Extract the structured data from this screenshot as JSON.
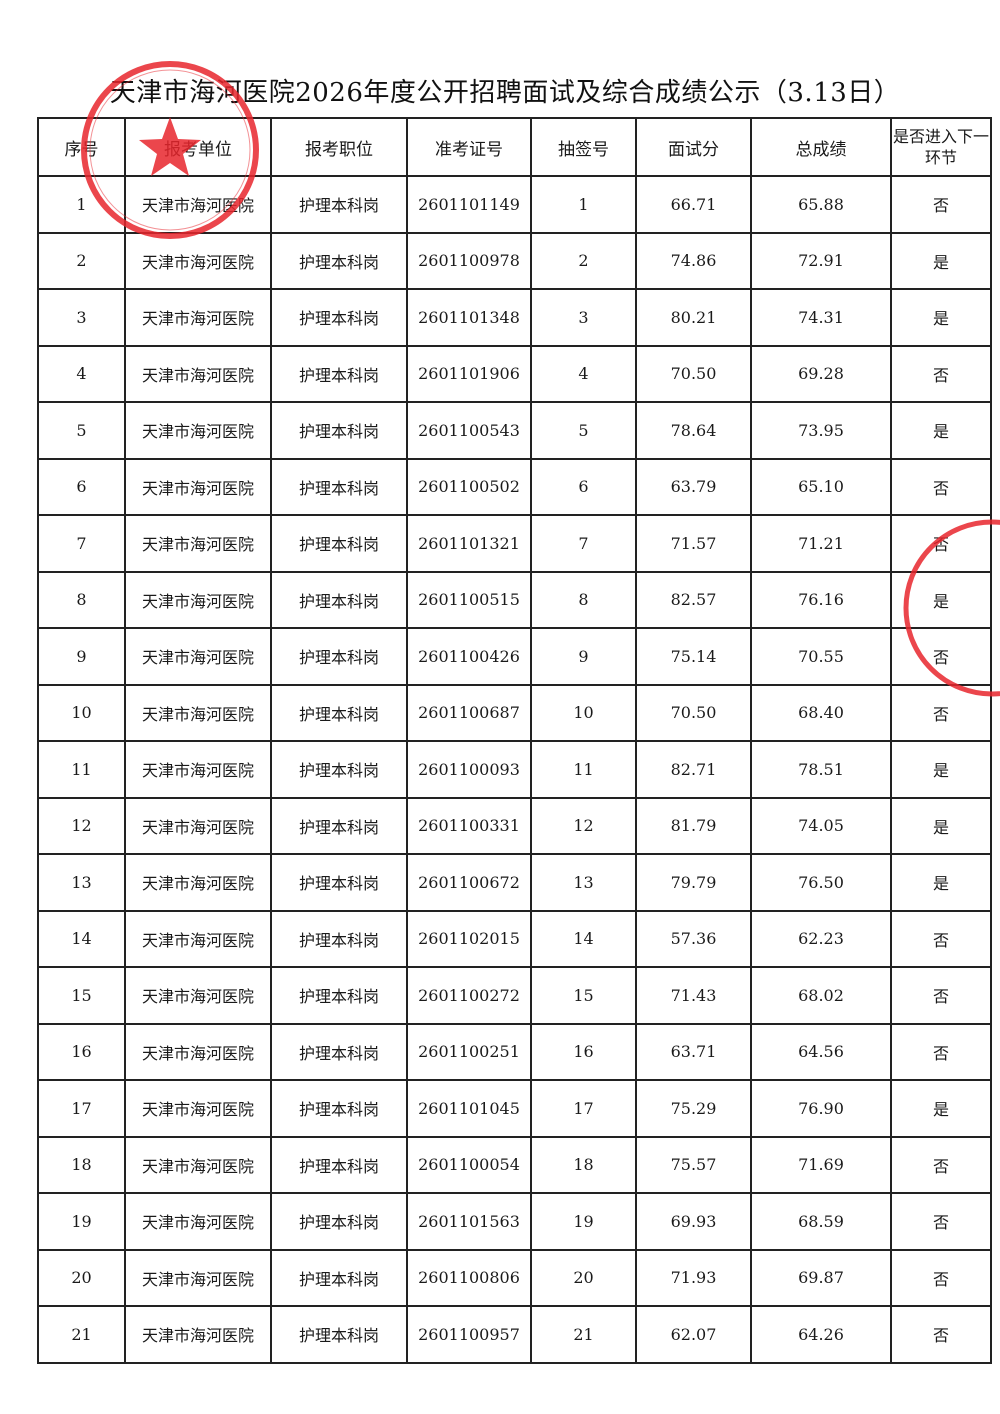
{
  "title": "天津市海河医院2026年度公开招聘面试及综合成绩公示（3.13日）",
  "colors": {
    "stamp": "#e8262d",
    "ink": "#1a1a1a"
  },
  "table": {
    "headers": [
      "序号",
      "报考单位",
      "报考职位",
      "准考证号",
      "抽签号",
      "面试分",
      "总成绩",
      "是否进入下一环节"
    ],
    "rows": [
      [
        "1",
        "天津市海河医院",
        "护理本科岗",
        "2601101149",
        "1",
        "66.71",
        "65.88",
        "否"
      ],
      [
        "2",
        "天津市海河医院",
        "护理本科岗",
        "2601100978",
        "2",
        "74.86",
        "72.91",
        "是"
      ],
      [
        "3",
        "天津市海河医院",
        "护理本科岗",
        "2601101348",
        "3",
        "80.21",
        "74.31",
        "是"
      ],
      [
        "4",
        "天津市海河医院",
        "护理本科岗",
        "2601101906",
        "4",
        "70.50",
        "69.28",
        "否"
      ],
      [
        "5",
        "天津市海河医院",
        "护理本科岗",
        "2601100543",
        "5",
        "78.64",
        "73.95",
        "是"
      ],
      [
        "6",
        "天津市海河医院",
        "护理本科岗",
        "2601100502",
        "6",
        "63.79",
        "65.10",
        "否"
      ],
      [
        "7",
        "天津市海河医院",
        "护理本科岗",
        "2601101321",
        "7",
        "71.57",
        "71.21",
        "否"
      ],
      [
        "8",
        "天津市海河医院",
        "护理本科岗",
        "2601100515",
        "8",
        "82.57",
        "76.16",
        "是"
      ],
      [
        "9",
        "天津市海河医院",
        "护理本科岗",
        "2601100426",
        "9",
        "75.14",
        "70.55",
        "否"
      ],
      [
        "10",
        "天津市海河医院",
        "护理本科岗",
        "2601100687",
        "10",
        "70.50",
        "68.40",
        "否"
      ],
      [
        "11",
        "天津市海河医院",
        "护理本科岗",
        "2601100093",
        "11",
        "82.71",
        "78.51",
        "是"
      ],
      [
        "12",
        "天津市海河医院",
        "护理本科岗",
        "2601100331",
        "12",
        "81.79",
        "74.05",
        "是"
      ],
      [
        "13",
        "天津市海河医院",
        "护理本科岗",
        "2601100672",
        "13",
        "79.79",
        "76.50",
        "是"
      ],
      [
        "14",
        "天津市海河医院",
        "护理本科岗",
        "2601102015",
        "14",
        "57.36",
        "62.23",
        "否"
      ],
      [
        "15",
        "天津市海河医院",
        "护理本科岗",
        "2601100272",
        "15",
        "71.43",
        "68.02",
        "否"
      ],
      [
        "16",
        "天津市海河医院",
        "护理本科岗",
        "2601100251",
        "16",
        "63.71",
        "64.56",
        "否"
      ],
      [
        "17",
        "天津市海河医院",
        "护理本科岗",
        "2601101045",
        "17",
        "75.29",
        "76.90",
        "是"
      ],
      [
        "18",
        "天津市海河医院",
        "护理本科岗",
        "2601100054",
        "18",
        "75.57",
        "71.69",
        "否"
      ],
      [
        "19",
        "天津市海河医院",
        "护理本科岗",
        "2601101563",
        "19",
        "69.93",
        "68.59",
        "否"
      ],
      [
        "20",
        "天津市海河医院",
        "护理本科岗",
        "2601100806",
        "20",
        "71.93",
        "69.87",
        "否"
      ],
      [
        "21",
        "天津市海河医院",
        "护理本科岗",
        "2601100957",
        "21",
        "62.07",
        "64.26",
        "否"
      ]
    ]
  }
}
